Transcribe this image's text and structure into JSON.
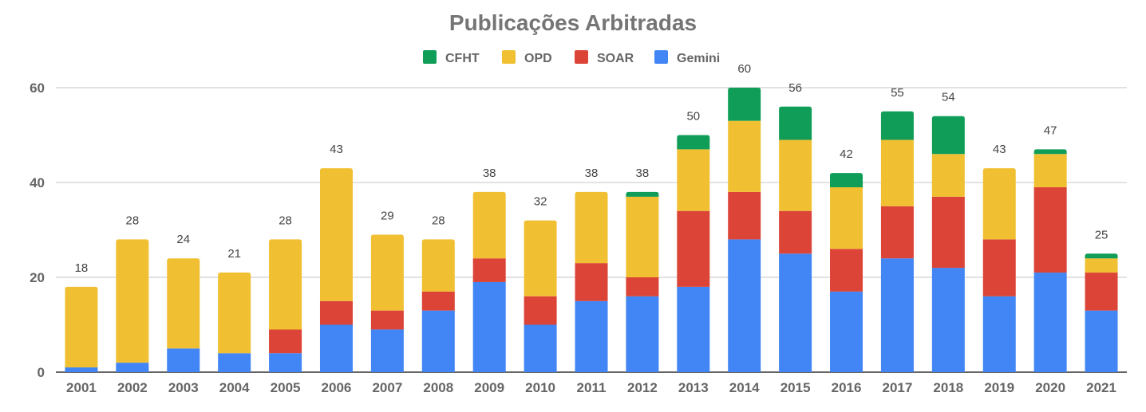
{
  "chart_data": {
    "type": "bar",
    "stacked": true,
    "title": "Publicações Arbitradas",
    "xlabel": "",
    "ylabel": "",
    "ylim": [
      0,
      60
    ],
    "yticks": [
      0,
      20,
      40,
      60
    ],
    "grid": true,
    "legend_position": "top",
    "categories": [
      "2001",
      "2002",
      "2003",
      "2004",
      "2005",
      "2006",
      "2007",
      "2008",
      "2009",
      "2010",
      "2011",
      "2012",
      "2013",
      "2014",
      "2015",
      "2016",
      "2017",
      "2018",
      "2019",
      "2020",
      "2021"
    ],
    "series": [
      {
        "name": "Gemini",
        "color": "#4285f4",
        "values": [
          1,
          2,
          5,
          4,
          4,
          10,
          9,
          13,
          19,
          10,
          15,
          16,
          18,
          28,
          25,
          17,
          24,
          22,
          16,
          21,
          13
        ]
      },
      {
        "name": "SOAR",
        "color": "#db4437",
        "values": [
          0,
          0,
          0,
          0,
          5,
          5,
          4,
          4,
          5,
          6,
          8,
          4,
          16,
          10,
          9,
          9,
          11,
          15,
          12,
          18,
          8
        ]
      },
      {
        "name": "OPD",
        "color": "#f0c032",
        "values": [
          17,
          26,
          19,
          17,
          19,
          28,
          16,
          11,
          14,
          16,
          15,
          17,
          13,
          15,
          15,
          13,
          14,
          9,
          15,
          7,
          3
        ]
      },
      {
        "name": "CFHT",
        "color": "#0f9d58",
        "values": [
          0,
          0,
          0,
          0,
          0,
          0,
          0,
          0,
          0,
          0,
          0,
          1,
          3,
          7,
          7,
          3,
          6,
          8,
          0,
          1,
          1
        ]
      }
    ],
    "totals": [
      18,
      28,
      24,
      21,
      28,
      43,
      29,
      28,
      38,
      32,
      38,
      38,
      50,
      60,
      56,
      42,
      55,
      54,
      43,
      47,
      25
    ],
    "legend_order": [
      "CFHT",
      "OPD",
      "SOAR",
      "Gemini"
    ]
  }
}
